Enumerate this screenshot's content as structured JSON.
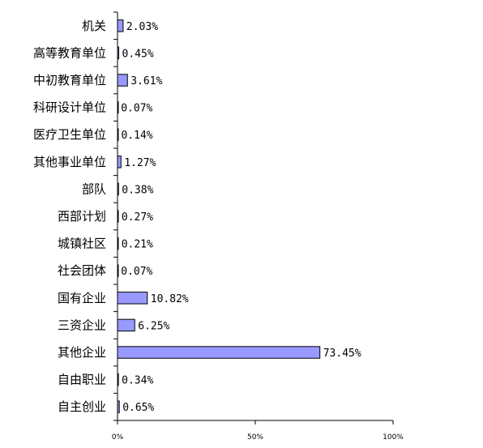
{
  "chart_data": {
    "type": "bar",
    "orientation": "horizontal",
    "categories": [
      "机关",
      "高等教育单位",
      "中初教育单位",
      "科研设计单位",
      "医疗卫生单位",
      "其他事业单位",
      "部队",
      "西部计划",
      "城镇社区",
      "社会团体",
      "国有企业",
      "三资企业",
      "其他企业",
      "自由职业",
      "自主创业"
    ],
    "values": [
      2.03,
      0.45,
      3.61,
      0.07,
      0.14,
      1.27,
      0.38,
      0.27,
      0.21,
      0.07,
      10.82,
      6.25,
      73.45,
      0.34,
      0.65
    ],
    "value_labels": [
      "2.03%",
      "0.45%",
      "3.61%",
      "0.07%",
      "0.14%",
      "1.27%",
      "0.38%",
      "0.27%",
      "0.21%",
      "0.07%",
      "10.82%",
      "6.25%",
      "73.45%",
      "0.34%",
      "0.65%"
    ],
    "xlim": [
      0,
      100
    ],
    "xticks": [
      "0%",
      "50%",
      "100%"
    ],
    "title": "",
    "xlabel": "",
    "ylabel": "",
    "grid": false,
    "bar_color": "#9999ff",
    "bar_edge_color": "#000000"
  }
}
